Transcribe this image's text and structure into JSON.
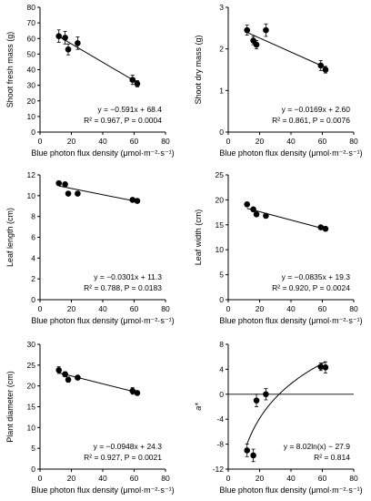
{
  "chart_data": [
    {
      "type": "scatter",
      "xlabel": "Blue photon flux density (μmol·m⁻²·s⁻¹)",
      "ylabel": "Shoot fresh mass (g)",
      "xlim": [
        0,
        80
      ],
      "ylim": [
        0,
        80
      ],
      "xticks": [
        0,
        20,
        40,
        60,
        80
      ],
      "yticks": [
        0,
        10,
        20,
        30,
        40,
        50,
        60,
        70,
        80
      ],
      "grid": false,
      "points": {
        "x": [
          12,
          16,
          18,
          24,
          59,
          62
        ],
        "y": [
          61.5,
          60.5,
          53,
          57,
          33.5,
          31
        ],
        "err": [
          4,
          4,
          3.5,
          4,
          3,
          2
        ]
      },
      "fit": {
        "kind": "linear",
        "slope": -0.591,
        "intercept": 68.4,
        "x_range": [
          12,
          62
        ]
      },
      "annotation": [
        "y = −0.591x + 68.4",
        "R² = 0.967, P = 0.0004"
      ]
    },
    {
      "type": "scatter",
      "xlabel": "Blue photon flux density (μmol·m⁻²·s⁻¹)",
      "ylabel": "Shoot dry mass (g)",
      "xlim": [
        0,
        80
      ],
      "ylim": [
        0,
        3
      ],
      "xticks": [
        0,
        20,
        40,
        60,
        80
      ],
      "yticks": [
        0,
        1,
        2,
        3
      ],
      "grid": false,
      "points": {
        "x": [
          12,
          16,
          18,
          24,
          59,
          62
        ],
        "y": [
          2.45,
          2.2,
          2.1,
          2.45,
          1.6,
          1.5
        ],
        "err": [
          0.12,
          0.1,
          0.1,
          0.15,
          0.12,
          0.08
        ]
      },
      "fit": {
        "kind": "linear",
        "slope": -0.0169,
        "intercept": 2.6,
        "x_range": [
          12,
          62
        ]
      },
      "annotation": [
        "y = −0.0169x + 2.60",
        "R² = 0.861, P = 0.0076"
      ]
    },
    {
      "type": "scatter",
      "xlabel": "Blue photon flux density (μmol·m⁻²·s⁻¹)",
      "ylabel": "Leaf length (cm)",
      "xlim": [
        0,
        80
      ],
      "ylim": [
        0,
        12
      ],
      "xticks": [
        0,
        20,
        40,
        60,
        80
      ],
      "yticks": [
        0,
        2,
        4,
        6,
        8,
        10,
        12
      ],
      "grid": false,
      "points": {
        "x": [
          12,
          16,
          18,
          24,
          59,
          62
        ],
        "y": [
          11.2,
          11.1,
          10.2,
          10.2,
          9.6,
          9.5
        ],
        "err": [
          0.15,
          0.15,
          0.15,
          0.15,
          0.15,
          0.15
        ]
      },
      "fit": {
        "kind": "linear",
        "slope": -0.0301,
        "intercept": 11.3,
        "x_range": [
          12,
          62
        ]
      },
      "annotation": [
        "y = −0.0301x + 11.3",
        "R² = 0.788, P = 0.0183"
      ]
    },
    {
      "type": "scatter",
      "xlabel": "Blue photon flux density (μmol·m⁻²·s⁻¹)",
      "ylabel": "Leaf width (cm)",
      "xlim": [
        0,
        80
      ],
      "ylim": [
        0,
        25
      ],
      "xticks": [
        0,
        20,
        40,
        60,
        80
      ],
      "yticks": [
        0,
        5,
        10,
        15,
        20,
        25
      ],
      "grid": false,
      "points": {
        "x": [
          12,
          16,
          18,
          24,
          59,
          62
        ],
        "y": [
          19.1,
          18.1,
          17.1,
          16.8,
          14.5,
          14.2
        ],
        "err": [
          0.3,
          0.3,
          0.3,
          0.3,
          0.3,
          0.3
        ]
      },
      "fit": {
        "kind": "linear",
        "slope": -0.0835,
        "intercept": 19.3,
        "x_range": [
          12,
          62
        ]
      },
      "annotation": [
        "y = −0.0835x + 19.3",
        "R² = 0.920, P = 0.0024"
      ]
    },
    {
      "type": "scatter",
      "xlabel": "Blue photon flux density (μmol·m⁻²·s⁻¹)",
      "ylabel": "Plant diameter (cm)",
      "xlim": [
        0,
        80
      ],
      "ylim": [
        0,
        30
      ],
      "xticks": [
        0,
        20,
        40,
        60,
        80
      ],
      "yticks": [
        0,
        5,
        10,
        15,
        20,
        25,
        30
      ],
      "grid": false,
      "points": {
        "x": [
          12,
          16,
          18,
          24,
          59,
          62
        ],
        "y": [
          23.8,
          22.8,
          21.5,
          22,
          18.8,
          18.3
        ],
        "err": [
          0.8,
          0.6,
          0.6,
          0.5,
          0.8,
          0.5
        ]
      },
      "fit": {
        "kind": "linear",
        "slope": -0.0948,
        "intercept": 24.3,
        "x_range": [
          12,
          62
        ]
      },
      "annotation": [
        "y = −0.0948x + 24.3",
        "R² = 0.927, P = 0.0021"
      ]
    },
    {
      "type": "scatter",
      "xlabel": "Blue photon flux density (μmol·m⁻²·s⁻¹)",
      "ylabel": "a*",
      "xlim": [
        0,
        80
      ],
      "ylim": [
        -12,
        8
      ],
      "xticks": [
        0,
        20,
        40,
        60,
        80
      ],
      "yticks": [
        -12,
        -8,
        -4,
        0,
        4,
        8
      ],
      "grid": false,
      "zero_line": true,
      "points": {
        "x": [
          12,
          16,
          18,
          24,
          59,
          62
        ],
        "y": [
          -9,
          -9.8,
          -1,
          0,
          4.4,
          4.3
        ],
        "err": [
          1,
          1,
          1,
          0.9,
          0.6,
          0.9
        ]
      },
      "fit": {
        "kind": "log",
        "a": 8.02,
        "b": -27.9,
        "x_range": [
          12,
          62
        ]
      },
      "annotation": [
        "y = 8.02ln(x) − 27.9",
        "R² = 0.814"
      ]
    }
  ]
}
